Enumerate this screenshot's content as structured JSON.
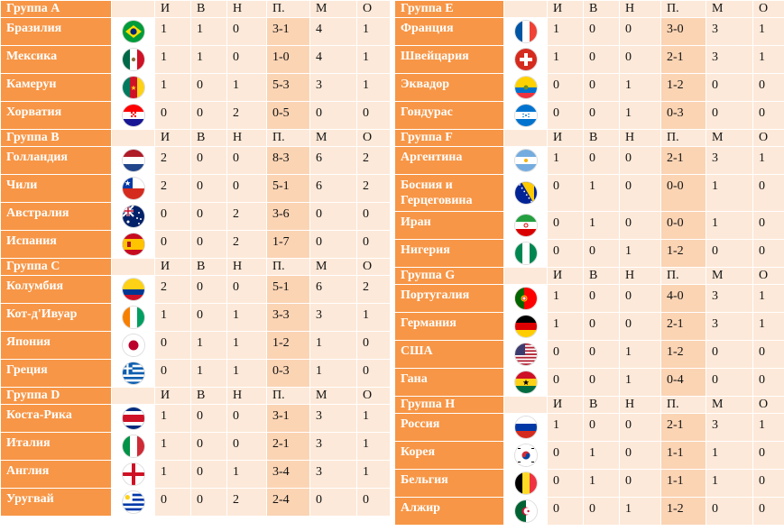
{
  "columns": [
    "И",
    "В",
    "Н",
    "П.",
    "М",
    "О"
  ],
  "groups_left": [
    {
      "title": "Группа A",
      "teams": [
        {
          "name": "Бразилия",
          "flag": "brazil-flag-icon",
          "stats": [
            "1",
            "1",
            "0",
            "3-1",
            "4",
            "1"
          ]
        },
        {
          "name": "Мексика",
          "flag": "mexico-flag-icon",
          "stats": [
            "1",
            "1",
            "0",
            "1-0",
            "4",
            "1"
          ]
        },
        {
          "name": "Камерун",
          "flag": "cameroon-flag-icon",
          "stats": [
            "1",
            "0",
            "1",
            "5-3",
            "3",
            "1"
          ]
        },
        {
          "name": "Хорватия",
          "flag": "croatia-flag-icon",
          "stats": [
            "0",
            "0",
            "2",
            "0-5",
            "0",
            "0"
          ]
        }
      ]
    },
    {
      "title": "Группа B",
      "teams": [
        {
          "name": "Голландия",
          "flag": "netherlands-flag-icon",
          "stats": [
            "2",
            "0",
            "0",
            "8-3",
            "6",
            "2"
          ]
        },
        {
          "name": "Чили",
          "flag": "chile-flag-icon",
          "stats": [
            "2",
            "0",
            "0",
            "5-1",
            "6",
            "2"
          ]
        },
        {
          "name": "Австралия",
          "flag": "australia-flag-icon",
          "stats": [
            "0",
            "0",
            "2",
            "3-6",
            "0",
            "0"
          ]
        },
        {
          "name": "Испания",
          "flag": "spain-flag-icon",
          "stats": [
            "0",
            "0",
            "2",
            "1-7",
            "0",
            "0"
          ]
        }
      ]
    },
    {
      "title": "Группа C",
      "teams": [
        {
          "name": "Колумбия",
          "flag": "colombia-flag-icon",
          "stats": [
            "2",
            "0",
            "0",
            "5-1",
            "6",
            "2"
          ]
        },
        {
          "name": "Кот-д'Ивуар",
          "flag": "ivory-coast-flag-icon",
          "stats": [
            "1",
            "0",
            "1",
            "3-3",
            "3",
            "1"
          ]
        },
        {
          "name": "Япония",
          "flag": "japan-flag-icon",
          "stats": [
            "0",
            "1",
            "1",
            "1-2",
            "1",
            "0"
          ]
        },
        {
          "name": "Греция",
          "flag": "greece-flag-icon",
          "stats": [
            "0",
            "1",
            "1",
            "0-3",
            "1",
            "0"
          ]
        }
      ]
    },
    {
      "title": "Группа D",
      "teams": [
        {
          "name": "Коста-Рика",
          "flag": "costa-rica-flag-icon",
          "stats": [
            "1",
            "0",
            "0",
            "3-1",
            "3",
            "1"
          ]
        },
        {
          "name": "Италия",
          "flag": "italy-flag-icon",
          "stats": [
            "1",
            "0",
            "0",
            "2-1",
            "3",
            "1"
          ]
        },
        {
          "name": "Англия",
          "flag": "england-flag-icon",
          "stats": [
            "1",
            "0",
            "1",
            "3-4",
            "3",
            "1"
          ]
        },
        {
          "name": "Уругвай",
          "flag": "uruguay-flag-icon",
          "stats": [
            "0",
            "0",
            "2",
            "2-4",
            "0",
            "0"
          ]
        }
      ]
    }
  ],
  "groups_right": [
    {
      "title": "Группа E",
      "teams": [
        {
          "name": "Франция",
          "flag": "france-flag-icon",
          "stats": [
            "1",
            "0",
            "0",
            "3-0",
            "3",
            "1"
          ]
        },
        {
          "name": "Швейцария",
          "flag": "switzerland-flag-icon",
          "stats": [
            "1",
            "0",
            "0",
            "2-1",
            "3",
            "1"
          ]
        },
        {
          "name": "Эквадор",
          "flag": "ecuador-flag-icon",
          "stats": [
            "0",
            "0",
            "1",
            "1-2",
            "0",
            "0"
          ]
        },
        {
          "name": "Гондурас",
          "flag": "honduras-flag-icon",
          "stats": [
            "0",
            "0",
            "1",
            "0-3",
            "0",
            "0"
          ]
        }
      ]
    },
    {
      "title": "Группа F",
      "teams": [
        {
          "name": "Аргентина",
          "flag": "argentina-flag-icon",
          "stats": [
            "1",
            "0",
            "0",
            "2-1",
            "3",
            "1"
          ]
        },
        {
          "name": "Босния и Герцеговина",
          "flag": "bosnia-flag-icon",
          "stats": [
            "0",
            "1",
            "0",
            "0-0",
            "1",
            "0"
          ]
        },
        {
          "name": "Иран",
          "flag": "iran-flag-icon",
          "stats": [
            "0",
            "1",
            "0",
            "0-0",
            "1",
            "0"
          ]
        },
        {
          "name": "Нигерия",
          "flag": "nigeria-flag-icon",
          "stats": [
            "0",
            "0",
            "1",
            "1-2",
            "0",
            "0"
          ]
        }
      ]
    },
    {
      "title": "Группа G",
      "teams": [
        {
          "name": "Португалия",
          "flag": "portugal-flag-icon",
          "stats": [
            "1",
            "0",
            "0",
            "4-0",
            "3",
            "1"
          ]
        },
        {
          "name": "Германия",
          "flag": "germany-flag-icon",
          "stats": [
            "1",
            "0",
            "0",
            "2-1",
            "3",
            "1"
          ]
        },
        {
          "name": "США",
          "flag": "usa-flag-icon",
          "stats": [
            "0",
            "0",
            "1",
            "1-2",
            "0",
            "0"
          ]
        },
        {
          "name": "Гана",
          "flag": "ghana-flag-icon",
          "stats": [
            "0",
            "0",
            "1",
            "0-4",
            "0",
            "0"
          ]
        }
      ]
    },
    {
      "title": "Группа H",
      "teams": [
        {
          "name": "Россия",
          "flag": "russia-flag-icon",
          "stats": [
            "1",
            "0",
            "0",
            "2-1",
            "3",
            "1"
          ]
        },
        {
          "name": "Корея",
          "flag": "korea-flag-icon",
          "stats": [
            "0",
            "1",
            "0",
            "1-1",
            "1",
            "0"
          ]
        },
        {
          "name": "Бельгия",
          "flag": "belgium-flag-icon",
          "stats": [
            "0",
            "1",
            "0",
            "1-1",
            "1",
            "0"
          ]
        },
        {
          "name": "Алжир",
          "flag": "algeria-flag-icon",
          "stats": [
            "0",
            "0",
            "1",
            "1-2",
            "0",
            "0"
          ]
        }
      ]
    }
  ]
}
